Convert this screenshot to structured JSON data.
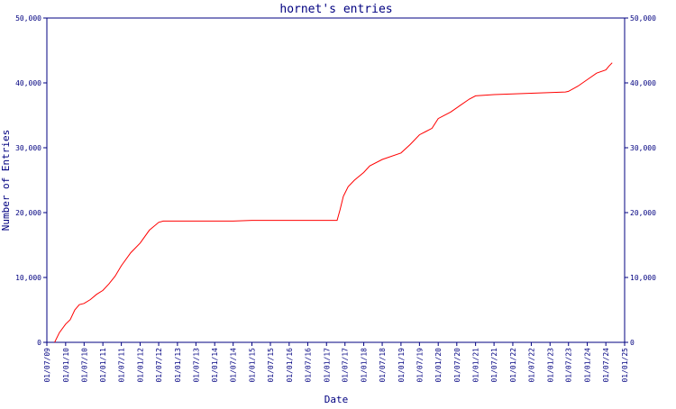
{
  "colors": {
    "axis": "#000080",
    "text": "#000080",
    "line": "#ff0000",
    "background": "#ffffff"
  },
  "chart_data": {
    "type": "line",
    "title": "hornet's entries",
    "xlabel": "Date",
    "ylabel": "Number of Entries",
    "grid": false,
    "legend": "none",
    "ylim": [
      0,
      50000
    ],
    "xlim": [
      "2009-07-01",
      "2025-01-01"
    ],
    "y_ticks": [
      0,
      10000,
      20000,
      30000,
      40000,
      50000
    ],
    "y_tick_labels": [
      "0",
      "10,000",
      "20,000",
      "30,000",
      "40,000",
      "50,000"
    ],
    "x_ticks": [
      "2009-07-01",
      "2010-01-01",
      "2010-07-01",
      "2011-01-01",
      "2011-07-01",
      "2012-01-01",
      "2012-07-01",
      "2013-01-01",
      "2013-07-01",
      "2014-01-01",
      "2014-07-01",
      "2015-01-01",
      "2015-07-01",
      "2016-01-01",
      "2016-07-01",
      "2017-01-01",
      "2017-07-01",
      "2018-01-01",
      "2018-07-01",
      "2019-01-01",
      "2019-07-01",
      "2020-01-01",
      "2020-07-01",
      "2021-01-01",
      "2021-07-01",
      "2022-01-01",
      "2022-07-01",
      "2023-01-01",
      "2023-07-01",
      "2024-01-01",
      "2024-07-01",
      "2025-01-01"
    ],
    "x_tick_labels": [
      "01/07/09",
      "01/01/10",
      "01/07/10",
      "01/01/11",
      "01/07/11",
      "01/01/12",
      "01/07/12",
      "01/01/13",
      "01/07/13",
      "01/01/14",
      "01/07/14",
      "01/01/15",
      "01/07/15",
      "01/01/16",
      "01/07/16",
      "01/01/17",
      "01/07/17",
      "01/01/18",
      "01/07/18",
      "01/01/19",
      "01/07/19",
      "01/01/20",
      "01/07/20",
      "01/01/21",
      "01/07/21",
      "01/01/22",
      "01/07/22",
      "01/01/23",
      "01/07/23",
      "01/01/24",
      "01/07/24",
      "01/01/25"
    ],
    "series": [
      {
        "x": [
          "2009-09-15",
          "2009-11-01",
          "2010-01-01",
          "2010-02-15",
          "2010-04-01",
          "2010-05-15",
          "2010-07-01",
          "2010-09-01",
          "2010-11-01",
          "2011-01-01",
          "2011-03-01",
          "2011-05-01",
          "2011-07-01",
          "2011-10-01",
          "2012-01-01",
          "2012-04-01",
          "2012-07-01",
          "2012-08-15",
          "2012-10-01",
          "2013-07-01",
          "2014-07-01",
          "2015-01-01",
          "2016-01-01",
          "2017-01-01",
          "2017-04-15",
          "2017-05-15",
          "2017-06-15",
          "2017-08-01",
          "2017-10-01",
          "2018-01-01",
          "2018-03-01",
          "2018-07-01",
          "2019-01-01",
          "2019-04-01",
          "2019-07-01",
          "2019-09-01",
          "2019-11-01",
          "2020-01-01",
          "2020-05-01",
          "2020-08-01",
          "2020-11-01",
          "2021-01-01",
          "2021-07-01",
          "2022-01-01",
          "2022-07-01",
          "2023-01-01",
          "2023-06-01",
          "2023-07-01",
          "2023-10-01",
          "2024-01-01",
          "2024-04-01",
          "2024-07-01",
          "2024-08-01",
          "2024-09-01"
        ],
        "values": [
          0,
          1500,
          2800,
          3500,
          5000,
          5800,
          6000,
          6600,
          7400,
          8000,
          9000,
          10200,
          11800,
          13800,
          15300,
          17300,
          18500,
          18700,
          18700,
          18700,
          18700,
          18800,
          18800,
          18800,
          18800,
          20500,
          22500,
          24000,
          25000,
          26200,
          27200,
          28200,
          29200,
          30500,
          32000,
          32500,
          33000,
          34500,
          35500,
          36500,
          37500,
          38000,
          38200,
          38300,
          38400,
          38500,
          38600,
          38700,
          39500,
          40500,
          41500,
          42000,
          42600,
          43100
        ]
      }
    ]
  }
}
